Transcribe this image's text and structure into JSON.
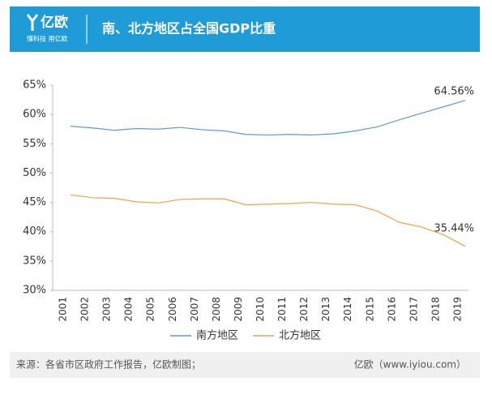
{
  "header": {
    "logo": "亿欧",
    "slogan": "懂科技 用亿欧"
  },
  "chart_data": {
    "type": "line",
    "title": "南、北方地区占全国GDP比重",
    "categories": [
      "2001",
      "2002",
      "2003",
      "2004",
      "2005",
      "2006",
      "2007",
      "2008",
      "2009",
      "2010",
      "2011",
      "2012",
      "2013",
      "2014",
      "2015",
      "2016",
      "2017",
      "2018",
      "2019"
    ],
    "series": [
      {
        "name": "南方地区",
        "color": "#5b9bd5",
        "values": [
          58.0,
          57.7,
          57.3,
          57.6,
          57.5,
          57.8,
          57.4,
          57.2,
          56.6,
          56.5,
          56.6,
          56.5,
          56.7,
          57.2,
          57.9,
          59.1,
          60.2,
          61.3,
          62.4
        ]
      },
      {
        "name": "北方地区",
        "color": "#f0a050",
        "values": [
          46.3,
          45.8,
          45.7,
          45.1,
          44.9,
          45.5,
          45.6,
          45.6,
          44.6,
          44.7,
          44.8,
          45.0,
          44.7,
          44.6,
          43.5,
          41.6,
          40.8,
          39.5,
          37.5
        ]
      }
    ],
    "annotations": [
      "64.56%",
      "35.44%"
    ],
    "ylim": [
      30,
      65
    ],
    "yticks": [
      {
        "value": 30,
        "label": "30%"
      },
      {
        "value": 35,
        "label": "35%"
      },
      {
        "value": 40,
        "label": "40%"
      },
      {
        "value": 45,
        "label": "45%"
      },
      {
        "value": 50,
        "label": "50%"
      },
      {
        "value": 55,
        "label": "55%"
      },
      {
        "value": 60,
        "label": "60%"
      },
      {
        "value": 65,
        "label": "65%"
      }
    ],
    "grid": false,
    "legend": "bottom"
  },
  "footer": {
    "source": "来源：各省市区政府工作报告，亿欧制图；",
    "site": "亿欧（www.iyiou.com）"
  }
}
